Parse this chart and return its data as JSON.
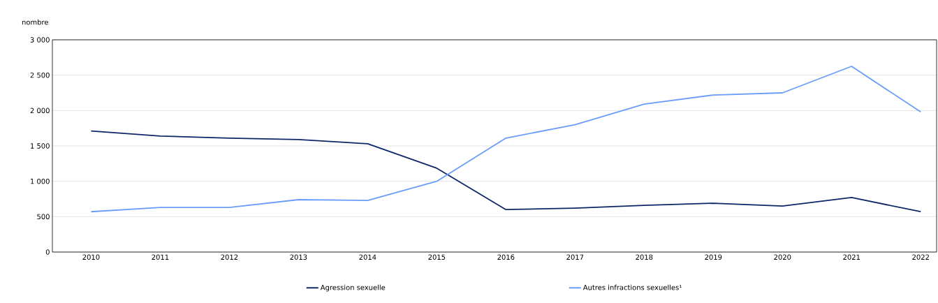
{
  "chart_data": {
    "type": "line",
    "ylabel": "nombre",
    "categories": [
      "2010",
      "2011",
      "2012",
      "2013",
      "2014",
      "2015",
      "2016",
      "2017",
      "2018",
      "2019",
      "2020",
      "2021",
      "2022"
    ],
    "series": [
      {
        "name": "Agression sexuelle",
        "color": "#0c2768",
        "values": [
          1710,
          1640,
          1610,
          1590,
          1530,
          1185,
          600,
          620,
          660,
          690,
          650,
          770,
          570
        ]
      },
      {
        "name": "Autres infractions sexuelles¹",
        "color": "#6a9cfa",
        "values": [
          570,
          630,
          630,
          740,
          730,
          1000,
          1610,
          1800,
          2090,
          2220,
          2250,
          2625,
          1980
        ]
      }
    ],
    "ylim": [
      0,
      3000
    ],
    "yticks": [
      {
        "value": 0,
        "label": "0"
      },
      {
        "value": 500,
        "label": "500"
      },
      {
        "value": 1000,
        "label": "1 000"
      },
      {
        "value": 1500,
        "label": "1 500"
      },
      {
        "value": 2000,
        "label": "2 000"
      },
      {
        "value": 2500,
        "label": "2 500"
      },
      {
        "value": 3000,
        "label": "3 000"
      }
    ],
    "grid": "y",
    "legend": "bottom",
    "marker": "none",
    "line_style": "solid"
  }
}
